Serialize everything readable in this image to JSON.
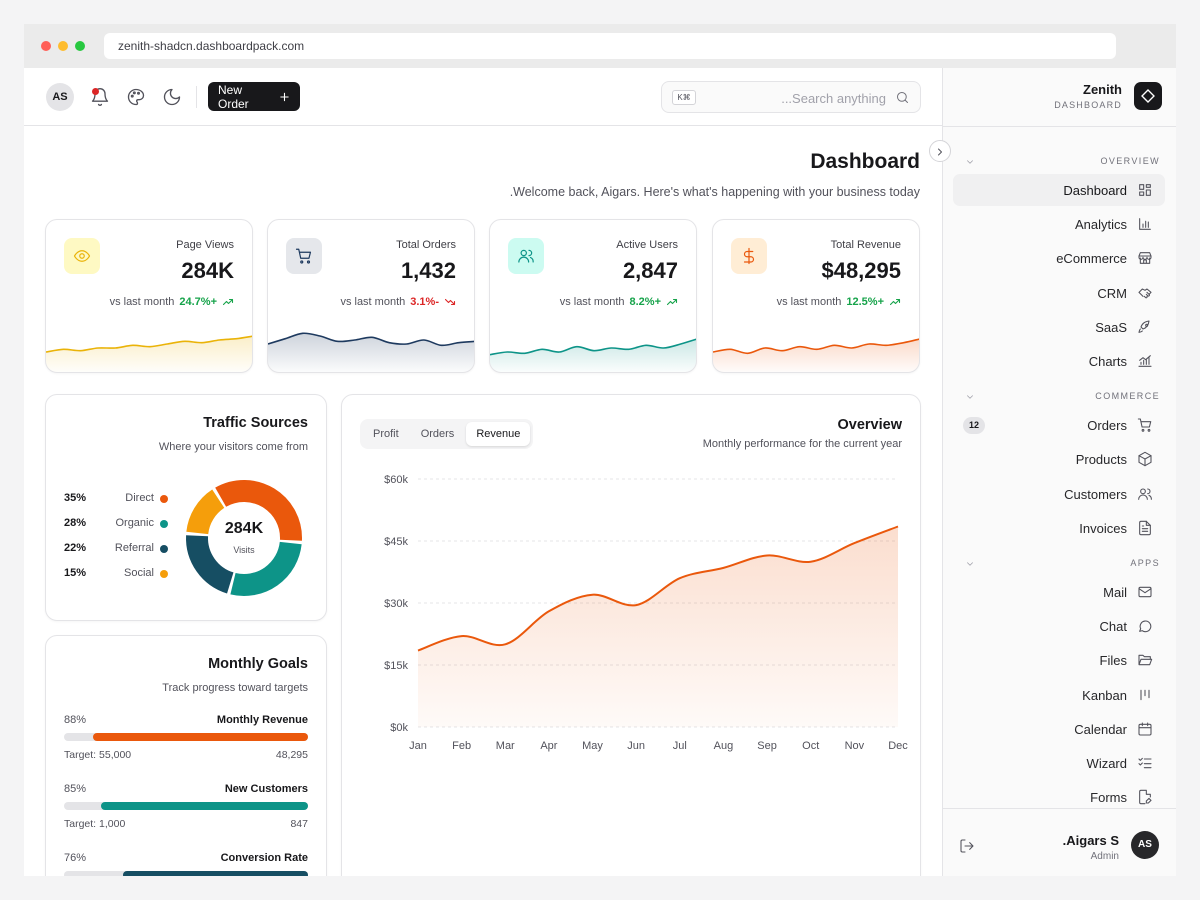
{
  "browser": {
    "url": "zenith-shadcn.dashboardpack.com"
  },
  "topbar": {
    "avatar": "AS",
    "new_order": "New Order",
    "search_kbd": "K⌘",
    "search_placeholder": "...Search anything"
  },
  "page": {
    "title": "Dashboard",
    "subtitle": ".Welcome back, Aigars. Here's what's happening with your business today"
  },
  "stats": [
    {
      "label": "Page Views",
      "value": "284K",
      "vs": "vs last month",
      "trend": "24.7%+",
      "direction": "up",
      "color": "#eab308",
      "spark": [
        12,
        14,
        13,
        15,
        15,
        17,
        16,
        18,
        20,
        19,
        21,
        22,
        24
      ]
    },
    {
      "label": "Total Orders",
      "value": "1,432",
      "vs": "vs last month",
      "trend": "3.1%-",
      "direction": "down",
      "color": "#1e3a5f",
      "spark": [
        18,
        22,
        26,
        24,
        20,
        21,
        23,
        19,
        18,
        21,
        17,
        19,
        20
      ]
    },
    {
      "label": "Active Users",
      "value": "2,847",
      "vs": "vs last month",
      "trend": "8.2%+",
      "direction": "up",
      "color": "#0d9488",
      "spark": [
        10,
        12,
        11,
        14,
        12,
        16,
        13,
        15,
        14,
        17,
        15,
        18,
        22
      ]
    },
    {
      "label": "Total Revenue",
      "value": "$48,295",
      "vs": "vs last month",
      "trend": "12.5%+",
      "direction": "up",
      "color": "#ea580c",
      "spark": [
        12,
        14,
        11,
        15,
        13,
        16,
        14,
        17,
        15,
        18,
        17,
        19,
        22
      ]
    }
  ],
  "colors": {
    "up": "#16a34a",
    "down": "#dc2626",
    "accent": "#ea580c",
    "teal": "#0d9488",
    "navy": "#164e63",
    "amber": "#f59e0b"
  },
  "traffic": {
    "title": "Traffic Sources",
    "subtitle": "Where your visitors come from",
    "center_value": "284K",
    "center_label": "Visits",
    "sources": [
      {
        "pct": "35%",
        "name": "Direct",
        "value": 35,
        "color": "#ea580c"
      },
      {
        "pct": "28%",
        "name": "Organic",
        "value": 28,
        "color": "#0d9488"
      },
      {
        "pct": "22%",
        "name": "Referral",
        "value": 22,
        "color": "#164e63"
      },
      {
        "pct": "15%",
        "name": "Social",
        "value": 15,
        "color": "#f59e0b"
      }
    ]
  },
  "goals": {
    "title": "Monthly Goals",
    "subtitle": "Track progress toward targets",
    "items": [
      {
        "pct": "88%",
        "name": "Monthly Revenue",
        "target": "Target: 55,000",
        "current": "48,295",
        "progress": 0.88,
        "color": "#ea580c"
      },
      {
        "pct": "85%",
        "name": "New Customers",
        "target": "Target: 1,000",
        "current": "847",
        "progress": 0.85,
        "color": "#0d9488"
      },
      {
        "pct": "76%",
        "name": "Conversion Rate",
        "target": "",
        "current": "",
        "progress": 0.76,
        "color": "#164e63"
      }
    ]
  },
  "overview": {
    "title": "Overview",
    "subtitle": "Monthly performance for the current year",
    "tabs": [
      "Profit",
      "Orders",
      "Revenue"
    ],
    "active_tab": "Revenue"
  },
  "chart_data": {
    "type": "area",
    "x": [
      "Jan",
      "Feb",
      "Mar",
      "Apr",
      "May",
      "Jun",
      "Jul",
      "Aug",
      "Sep",
      "Oct",
      "Nov",
      "Dec"
    ],
    "series": [
      {
        "values": [
          18500,
          22000,
          20000,
          28000,
          32000,
          29500,
          36000,
          38500,
          41500,
          40000,
          44500,
          48500
        ]
      }
    ],
    "y_ticks": [
      "$0k",
      "$15k",
      "$30k",
      "$45k",
      "$60k"
    ],
    "ylim": [
      0,
      60000
    ],
    "grid": true,
    "color": "#ea580c"
  },
  "sidebar": {
    "brand": "Zenith",
    "brand_sub": "DASHBOARD",
    "sections": [
      {
        "label": "OVERVIEW",
        "items": [
          {
            "label": "Dashboard",
            "icon": "grid-icon",
            "active": true
          },
          {
            "label": "Analytics",
            "icon": "bar-chart-icon"
          },
          {
            "label": "eCommerce",
            "icon": "store-icon"
          },
          {
            "label": "CRM",
            "icon": "handshake-icon"
          },
          {
            "label": "SaaS",
            "icon": "rocket-icon"
          },
          {
            "label": "Charts",
            "icon": "chart-icon"
          }
        ]
      },
      {
        "label": "COMMERCE",
        "items": [
          {
            "label": "Orders",
            "icon": "cart-icon",
            "badge": "12"
          },
          {
            "label": "Products",
            "icon": "box-icon"
          },
          {
            "label": "Customers",
            "icon": "users-icon"
          },
          {
            "label": "Invoices",
            "icon": "file-icon"
          }
        ]
      },
      {
        "label": "APPS",
        "items": [
          {
            "label": "Mail",
            "icon": "mail-icon"
          },
          {
            "label": "Chat",
            "icon": "chat-icon"
          },
          {
            "label": "Files",
            "icon": "folder-icon"
          },
          {
            "label": "Kanban",
            "icon": "kanban-icon"
          },
          {
            "label": "Calendar",
            "icon": "calendar-icon"
          },
          {
            "label": "Wizard",
            "icon": "list-check-icon"
          },
          {
            "label": "Forms",
            "icon": "form-icon"
          }
        ]
      }
    ],
    "user": {
      "name": ".Aigars S",
      "role": "Admin",
      "initials": "AS"
    }
  }
}
